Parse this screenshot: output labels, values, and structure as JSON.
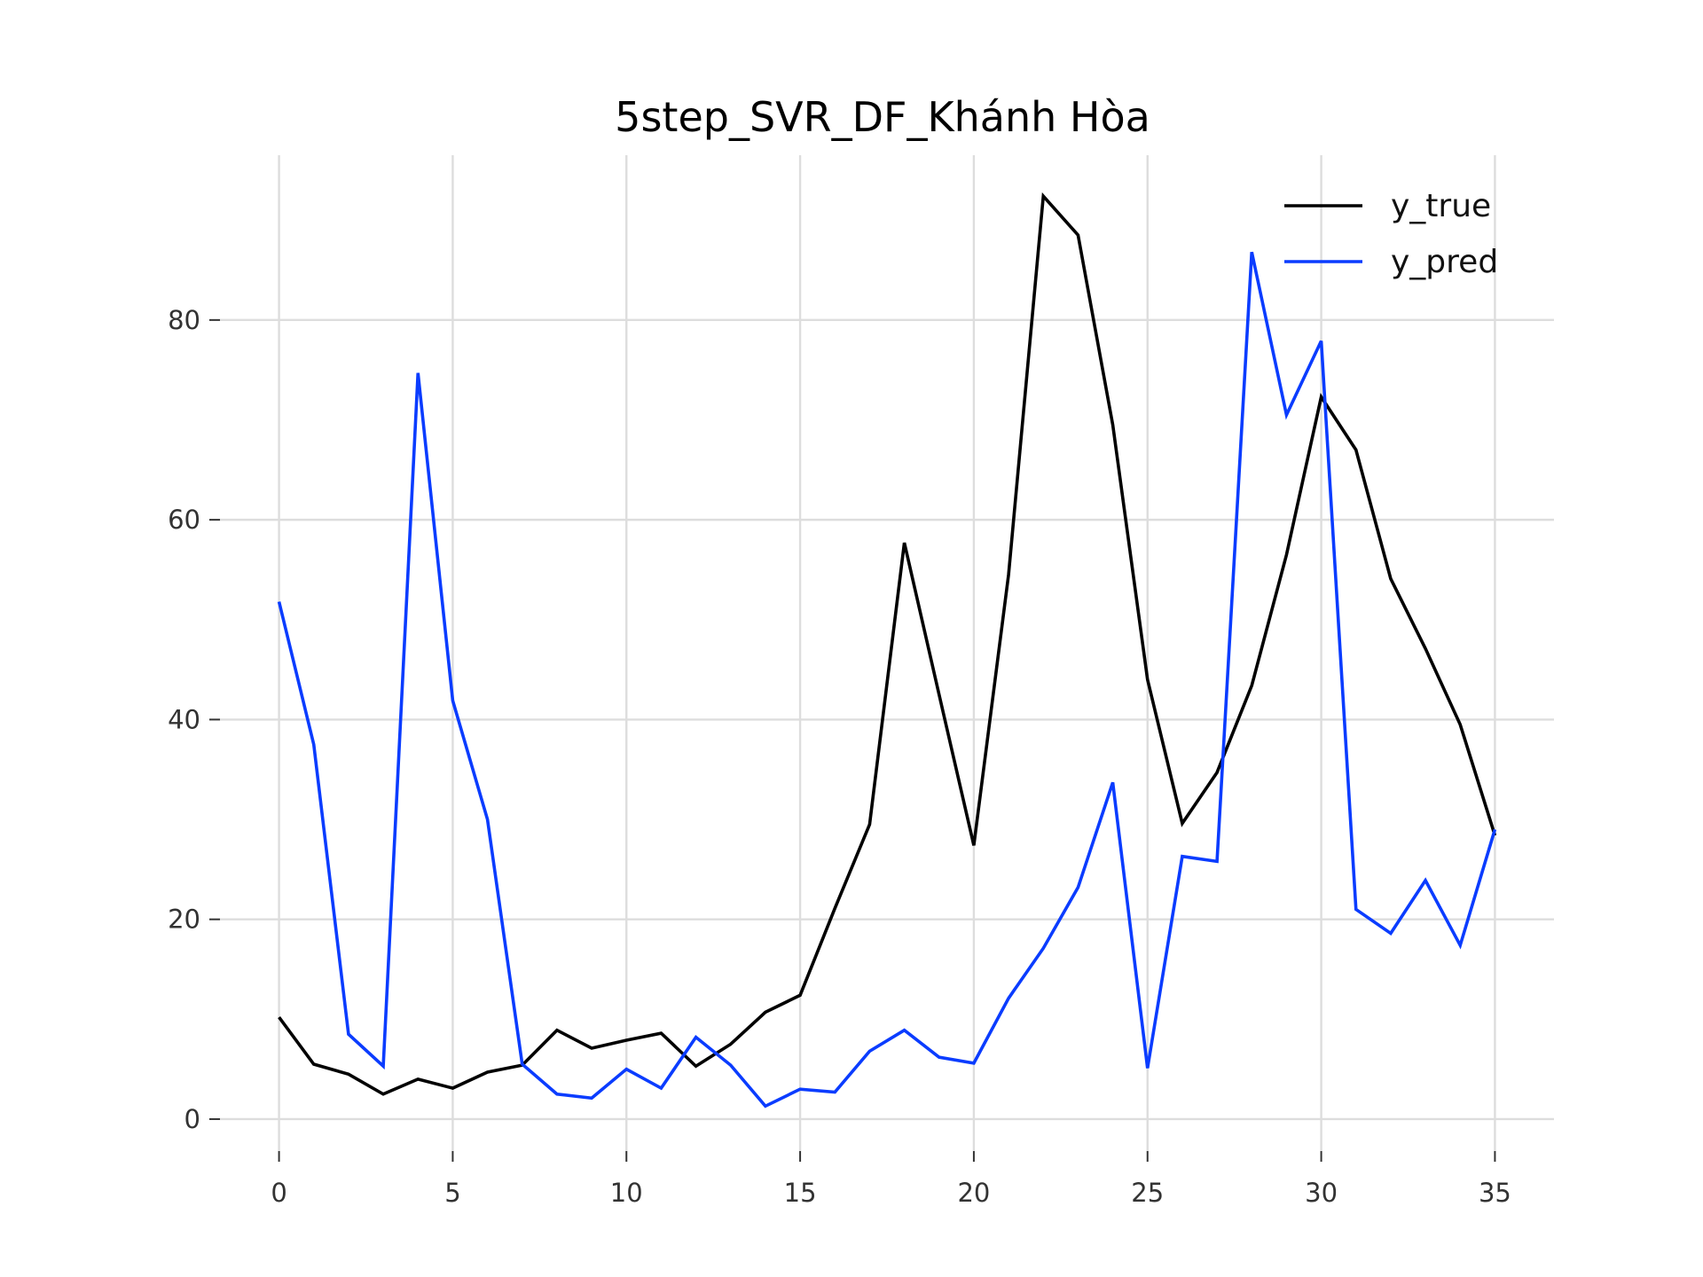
{
  "chart_data": {
    "type": "line",
    "title": "5step_SVR_DF_Khánh Hòa",
    "xlabel": "",
    "ylabel": "",
    "xlim": [
      -1.7,
      36.7
    ],
    "ylim": [
      -3.2,
      96.5
    ],
    "xticks": [
      0,
      5,
      10,
      15,
      20,
      25,
      30,
      35
    ],
    "yticks": [
      0,
      20,
      40,
      60,
      80
    ],
    "grid": true,
    "legend": "top-right",
    "x": [
      0,
      1,
      2,
      3,
      4,
      5,
      6,
      7,
      8,
      9,
      10,
      11,
      12,
      13,
      14,
      15,
      16,
      17,
      18,
      19,
      20,
      21,
      22,
      23,
      24,
      25,
      26,
      27,
      28,
      29,
      30,
      31,
      32,
      33,
      34,
      35
    ],
    "series": [
      {
        "name": "y_true",
        "color": "#000000",
        "values": [
          10.2,
          5.5,
          4.5,
          2.5,
          4.0,
          3.1,
          4.7,
          5.4,
          8.9,
          7.1,
          7.9,
          8.6,
          5.3,
          7.5,
          10.7,
          12.4,
          21.1,
          29.5,
          57.7,
          42.5,
          27.4,
          54.5,
          92.4,
          88.5,
          69.5,
          44.0,
          29.6,
          34.7,
          43.4,
          56.5,
          72.3,
          67.0,
          54.1,
          47.1,
          39.5,
          28.4
        ]
      },
      {
        "name": "y_pred",
        "color": "#0a3cff",
        "values": [
          51.8,
          37.5,
          8.5,
          5.3,
          74.7,
          41.9,
          30.0,
          5.5,
          2.5,
          2.1,
          5.0,
          3.1,
          8.2,
          5.4,
          1.3,
          3.0,
          2.7,
          6.8,
          8.9,
          6.2,
          5.6,
          12.1,
          17.1,
          23.2,
          33.7,
          5.1,
          26.3,
          25.8,
          86.8,
          70.5,
          77.9,
          21.0,
          18.6,
          23.9,
          17.4,
          29.0
        ]
      }
    ]
  }
}
